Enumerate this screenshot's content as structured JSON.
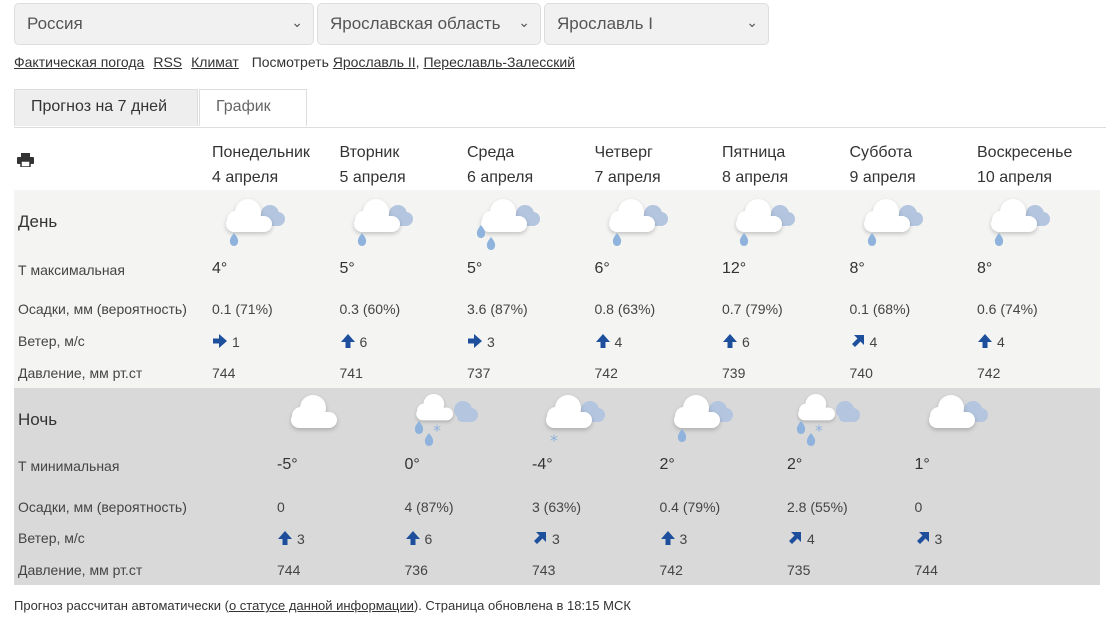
{
  "selectors": {
    "country": "Россия",
    "region": "Ярославская область",
    "station": "Ярославль I"
  },
  "links": {
    "actual": "Фактическая погода",
    "rss": "RSS",
    "climate": "Климат",
    "see_label": "Посмотреть",
    "see1": "Ярославль II",
    "sep": ",",
    "see2": "Переславль-Залесский"
  },
  "tabs": {
    "forecast": "Прогноз на 7 дней",
    "chart": "График"
  },
  "days": [
    {
      "name": "Понедельник",
      "date": "4 апреля"
    },
    {
      "name": "Вторник",
      "date": "5 апреля"
    },
    {
      "name": "Среда",
      "date": "6 апреля"
    },
    {
      "name": "Четверг",
      "date": "7 апреля"
    },
    {
      "name": "Пятница",
      "date": "8 апреля"
    },
    {
      "name": "Суббота",
      "date": "9 апреля"
    },
    {
      "name": "Воскресенье",
      "date": "10 апреля"
    }
  ],
  "day": {
    "title": "День",
    "labels": {
      "temp": "Т максимальная",
      "precip": "Осадки, мм (вероятность)",
      "wind": "Ветер, м/с",
      "pressure": "Давление, мм рт.ст"
    },
    "items": [
      {
        "icon": "cloud-rain",
        "temp": "4°",
        "precip": "0.1 (71%)",
        "wind_dir": "east",
        "wind": "1",
        "pressure": "744"
      },
      {
        "icon": "cloud-rain",
        "temp": "5°",
        "precip": "0.3 (60%)",
        "wind_dir": "north",
        "wind": "6",
        "pressure": "741"
      },
      {
        "icon": "cloud-heavy-rain",
        "temp": "5°",
        "precip": "3.6 (87%)",
        "wind_dir": "east",
        "wind": "3",
        "pressure": "737"
      },
      {
        "icon": "cloud-rain",
        "temp": "6°",
        "precip": "0.8 (63%)",
        "wind_dir": "north",
        "wind": "4",
        "pressure": "742"
      },
      {
        "icon": "cloud-rain",
        "temp": "12°",
        "precip": "0.7 (79%)",
        "wind_dir": "north",
        "wind": "6",
        "pressure": "739"
      },
      {
        "icon": "cloud-rain",
        "temp": "8°",
        "precip": "0.1 (68%)",
        "wind_dir": "northeast",
        "wind": "4",
        "pressure": "740"
      },
      {
        "icon": "cloud-rain",
        "temp": "8°",
        "precip": "0.6 (74%)",
        "wind_dir": "north",
        "wind": "4",
        "pressure": "742"
      }
    ]
  },
  "night": {
    "title": "Ночь",
    "labels": {
      "temp": "Т минимальная",
      "precip": "Осадки, мм (вероятность)",
      "wind": "Ветер, м/с",
      "pressure": "Давление, мм рт.ст"
    },
    "items": [
      {
        "icon": "cloud-moon",
        "temp": "-5°",
        "precip": "0",
        "wind_dir": "north",
        "wind": "3",
        "pressure": "744"
      },
      {
        "icon": "cloud-rain-snow",
        "temp": "0°",
        "precip": "4 (87%)",
        "wind_dir": "north",
        "wind": "6",
        "pressure": "736"
      },
      {
        "icon": "cloud-snow",
        "temp": "-4°",
        "precip": "3 (63%)",
        "wind_dir": "northeast",
        "wind": "3",
        "pressure": "743"
      },
      {
        "icon": "cloud-rain",
        "temp": "2°",
        "precip": "0.4 (79%)",
        "wind_dir": "north",
        "wind": "3",
        "pressure": "742"
      },
      {
        "icon": "cloud-rain-snow",
        "temp": "2°",
        "precip": "2.8 (55%)",
        "wind_dir": "northeast",
        "wind": "4",
        "pressure": "735"
      },
      {
        "icon": "cloud",
        "temp": "1°",
        "precip": "0",
        "wind_dir": "northeast",
        "wind": "3",
        "pressure": "744"
      }
    ]
  },
  "footer": {
    "pre": "Прогноз рассчитан автоматически (",
    "link": "о статусе данной информации",
    "post": "). Страница обновлена в 18:15 МСК"
  },
  "colors": {
    "arrow": "#1d4f9c",
    "drop": "#8fb3dd",
    "back_cloud": "#b3c5df",
    "moon": "#f6dc95",
    "day_bg": "#f4f4f3",
    "night_bg": "#d9d9d9"
  }
}
